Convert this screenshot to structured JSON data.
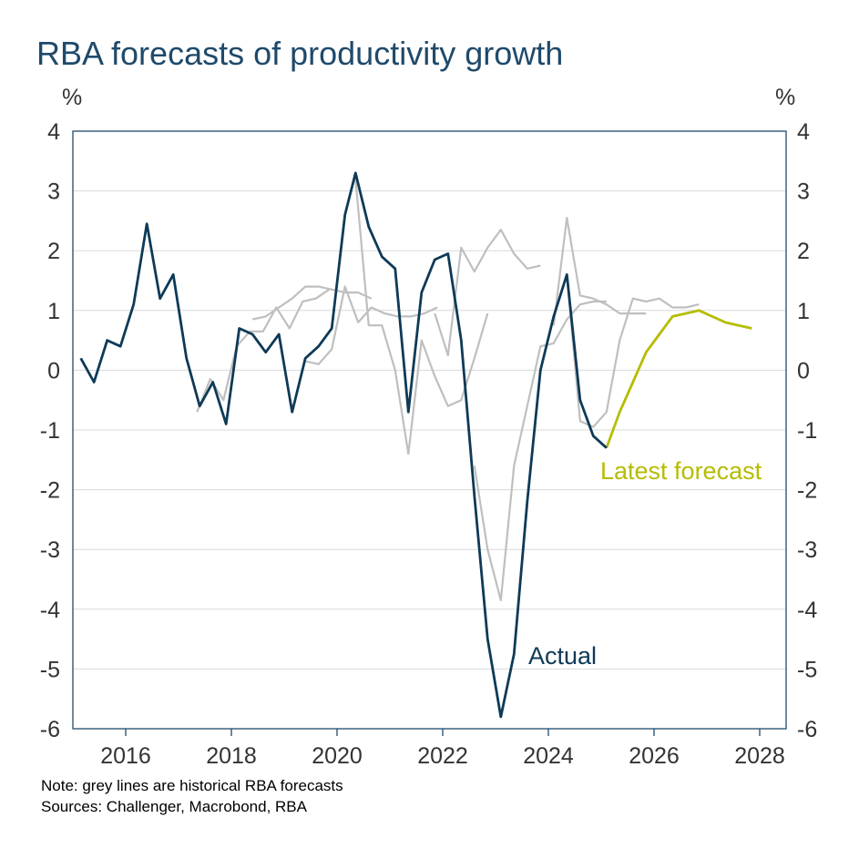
{
  "chart_data": {
    "type": "line",
    "title": "RBA forecasts of productivity growth",
    "ylabel_left": "%",
    "ylabel_right": "%",
    "ylim": [
      -6,
      4
    ],
    "xlim": [
      2015.0,
      2028.5
    ],
    "yticks": [
      4,
      3,
      2,
      1,
      0,
      -1,
      -2,
      -3,
      -4,
      -5,
      -6
    ],
    "ytick_labels": [
      "4",
      "3",
      "2",
      "1",
      "0",
      "-1",
      "-2",
      "-3",
      "-4",
      "-5",
      "-6"
    ],
    "xticks": [
      2016,
      2018,
      2020,
      2022,
      2024,
      2026,
      2028
    ],
    "xtick_labels": [
      "2016",
      "2018",
      "2020",
      "2022",
      "2024",
      "2026",
      "2028"
    ],
    "grid": true,
    "colors": {
      "actual": "#0e3a57",
      "latest": "#b5bd00",
      "historical": "#bfbfbf",
      "grid": "#d9d9d9",
      "axis": "#1f4a6b",
      "title": "#1f4a6b"
    },
    "annotations": [
      {
        "text": "Actual",
        "series": "actual"
      },
      {
        "text": "Latest forecast",
        "series": "latest"
      }
    ],
    "series": [
      {
        "name": "Actual",
        "kind": "actual",
        "x": [
          2015.15,
          2015.4,
          2015.65,
          2015.9,
          2016.15,
          2016.4,
          2016.65,
          2016.9,
          2017.15,
          2017.4,
          2017.65,
          2017.9,
          2018.15,
          2018.4,
          2018.65,
          2018.9,
          2019.15,
          2019.4,
          2019.65,
          2019.9,
          2020.15,
          2020.35,
          2020.6,
          2020.85,
          2021.1,
          2021.35,
          2021.6,
          2021.85,
          2022.1,
          2022.35,
          2022.6,
          2022.85,
          2023.1,
          2023.35,
          2023.6,
          2023.85,
          2024.1,
          2024.35,
          2024.6,
          2024.85,
          2025.1
        ],
        "values": [
          0.2,
          -0.2,
          0.5,
          0.4,
          1.1,
          2.45,
          1.2,
          1.6,
          0.2,
          -0.6,
          -0.2,
          -0.9,
          0.7,
          0.6,
          0.3,
          0.6,
          -0.7,
          0.2,
          0.4,
          0.7,
          2.6,
          3.3,
          2.4,
          1.9,
          1.7,
          -0.7,
          1.3,
          1.85,
          1.95,
          0.5,
          -2.1,
          -4.5,
          -5.8,
          -4.75,
          -2.2,
          0.0,
          0.9,
          1.6,
          -0.5,
          -1.1,
          -1.3
        ]
      },
      {
        "name": "Latest forecast",
        "kind": "latest",
        "x": [
          2025.1,
          2025.35,
          2025.6,
          2025.85,
          2026.1,
          2026.35,
          2026.6,
          2026.85,
          2027.1,
          2027.35,
          2027.6,
          2027.85
        ],
        "values": [
          -1.3,
          -0.7,
          -0.2,
          0.3,
          0.6,
          0.9,
          0.95,
          1.0,
          0.9,
          0.8,
          0.75,
          0.7
        ]
      },
      {
        "name": "Historical forecast 1",
        "kind": "historical",
        "x": [
          2017.35,
          2017.6,
          2017.85,
          2018.1,
          2018.35,
          2018.6,
          2018.85,
          2019.1,
          2019.35,
          2019.6,
          2019.85
        ],
        "values": [
          -0.7,
          -0.15,
          -0.5,
          0.4,
          0.65,
          0.65,
          1.05,
          0.7,
          1.15,
          1.2,
          1.35
        ]
      },
      {
        "name": "Historical forecast 2",
        "kind": "historical",
        "x": [
          2018.4,
          2018.65,
          2018.9,
          2019.15,
          2019.4,
          2019.65,
          2019.9,
          2020.15,
          2020.4,
          2020.65
        ],
        "values": [
          0.85,
          0.9,
          1.05,
          1.2,
          1.4,
          1.4,
          1.35,
          1.3,
          1.3,
          1.2
        ]
      },
      {
        "name": "Historical forecast 3",
        "kind": "historical",
        "x": [
          2019.4,
          2019.65,
          2019.9,
          2020.15,
          2020.4,
          2020.65,
          2020.9,
          2021.15,
          2021.4,
          2021.65,
          2021.9
        ],
        "values": [
          0.15,
          0.1,
          0.35,
          1.4,
          0.8,
          1.05,
          0.95,
          0.9,
          0.9,
          0.95,
          1.05
        ]
      },
      {
        "name": "Historical forecast 4",
        "kind": "historical",
        "x": [
          2020.35,
          2020.6,
          2020.85,
          2021.1,
          2021.35,
          2021.6,
          2021.85,
          2022.1,
          2022.35,
          2022.6,
          2022.85
        ],
        "values": [
          3.2,
          0.75,
          0.75,
          0.0,
          -1.4,
          0.5,
          -0.1,
          -0.6,
          -0.5,
          0.2,
          0.95
        ]
      },
      {
        "name": "Historical forecast 5",
        "kind": "historical",
        "x": [
          2021.85,
          2022.1,
          2022.35,
          2022.6,
          2022.85,
          2023.1,
          2023.35,
          2023.6,
          2023.85
        ],
        "values": [
          0.95,
          0.25,
          2.05,
          1.65,
          2.05,
          2.35,
          1.95,
          1.7,
          1.75
        ]
      },
      {
        "name": "Historical forecast 6",
        "kind": "historical",
        "x": [
          2022.6,
          2022.85,
          2023.1,
          2023.35,
          2023.6,
          2023.85,
          2024.1,
          2024.35,
          2024.6,
          2024.85,
          2025.1
        ],
        "values": [
          -1.6,
          -3.0,
          -3.85,
          -1.6,
          -0.6,
          0.4,
          0.45,
          0.85,
          1.1,
          1.15,
          1.15
        ]
      },
      {
        "name": "Historical forecast 7",
        "kind": "historical",
        "x": [
          2024.1,
          2024.35,
          2024.6,
          2024.85,
          2025.1,
          2025.35,
          2025.6,
          2025.85
        ],
        "values": [
          0.75,
          2.55,
          1.25,
          1.2,
          1.1,
          0.95,
          0.95,
          0.95
        ]
      },
      {
        "name": "Historical forecast 8",
        "kind": "historical",
        "x": [
          2024.35,
          2024.6,
          2024.85,
          2025.1,
          2025.35,
          2025.6,
          2025.85,
          2026.1,
          2026.35,
          2026.6,
          2026.85
        ],
        "values": [
          1.6,
          -0.85,
          -0.95,
          -0.7,
          0.5,
          1.2,
          1.15,
          1.2,
          1.05,
          1.05,
          1.1
        ]
      }
    ]
  },
  "footnotes": {
    "note": "Note: grey lines are historical RBA forecasts",
    "sources": "Sources: Challenger, Macrobond, RBA"
  }
}
